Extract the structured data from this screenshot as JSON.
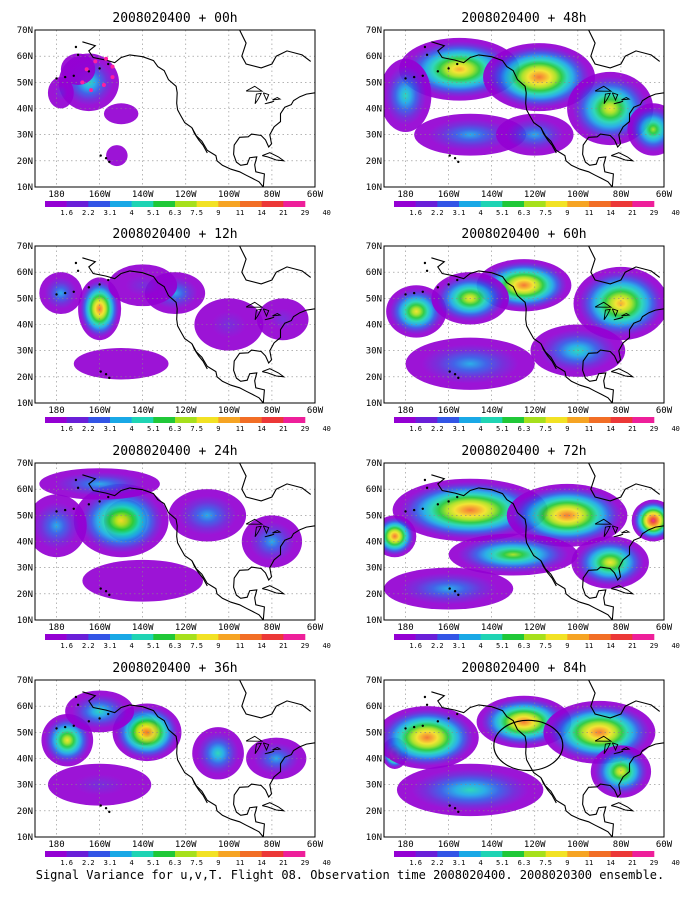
{
  "caption": "Signal Variance for u,v,T. Flight 08. Observation time 2008020400. 2008020300 ensemble.",
  "colors": [
    "#9400d3",
    "#6a1fd8",
    "#3355e6",
    "#19a8e6",
    "#1fd4b4",
    "#20c838",
    "#a6e01c",
    "#f2e224",
    "#f6a423",
    "#f26e26",
    "#ec3838",
    "#ee1f9a"
  ],
  "chart_data": [
    {
      "type": "heatmap",
      "title": "2008020400 + 00h",
      "lead": "00h",
      "x_ticks": [
        "180",
        "160W",
        "140W",
        "120W",
        "100W",
        "80W",
        "60W"
      ],
      "y_ticks": [
        "10N",
        "20N",
        "30N",
        "40N",
        "50N",
        "60N",
        "70N"
      ],
      "xlim": [
        -190,
        -60
      ],
      "ylim": [
        10,
        70
      ],
      "grid": true,
      "colorbar": [
        "1.6",
        "2.2",
        "3.1",
        "4",
        "5.1",
        "6.3",
        "7.5",
        "9",
        "11",
        "14",
        "21",
        "29",
        "40"
      ],
      "blobs": [
        [
          -165,
          50,
          14,
          11,
          5.5
        ],
        [
          -170,
          55,
          8,
          6,
          2
        ],
        [
          -150,
          38,
          8,
          4,
          1.6
        ],
        [
          -178,
          46,
          6,
          6,
          2.5
        ],
        [
          -152,
          22,
          5,
          4,
          2
        ]
      ],
      "markers": {
        "type": "dots",
        "points": [
          [
            -162,
            58
          ],
          [
            -157,
            59
          ],
          [
            -154,
            56
          ],
          [
            -154,
            52
          ],
          [
            -158,
            49
          ],
          [
            -164,
            47
          ],
          [
            -168,
            50
          ],
          [
            -166,
            55
          ]
        ]
      }
    },
    {
      "type": "heatmap",
      "title": "2008020400 + 48h",
      "lead": "48h",
      "x_ticks": [
        "180",
        "160W",
        "140W",
        "120W",
        "100W",
        "80W",
        "60W"
      ],
      "y_ticks": [
        "10N",
        "20N",
        "30N",
        "40N",
        "50N",
        "60N",
        "70N"
      ],
      "xlim": [
        -190,
        -60
      ],
      "ylim": [
        10,
        70
      ],
      "grid": true,
      "colorbar": [
        "1.6",
        "2.2",
        "3.1",
        "4",
        "5.1",
        "6.3",
        "7.5",
        "9",
        "11",
        "14",
        "21",
        "29",
        "40"
      ],
      "blobs": [
        [
          -155,
          55,
          28,
          12,
          12
        ],
        [
          -118,
          52,
          26,
          13,
          16
        ],
        [
          -85,
          40,
          20,
          14,
          10
        ],
        [
          -180,
          45,
          12,
          14,
          6
        ],
        [
          -65,
          32,
          12,
          10,
          8
        ],
        [
          -150,
          30,
          26,
          8,
          4
        ],
        [
          -120,
          30,
          18,
          8,
          4
        ]
      ]
    },
    {
      "type": "heatmap",
      "title": "2008020400 + 12h",
      "lead": "12h",
      "x_ticks": [
        "180",
        "160W",
        "140W",
        "120W",
        "100W",
        "80W",
        "60W"
      ],
      "y_ticks": [
        "10N",
        "20N",
        "30N",
        "40N",
        "50N",
        "60N",
        "70N"
      ],
      "xlim": [
        -190,
        -60
      ],
      "ylim": [
        10,
        70
      ],
      "grid": true,
      "colorbar": [
        "1.6",
        "2.2",
        "3.1",
        "4",
        "5.1",
        "6.3",
        "7.5",
        "9",
        "11",
        "14",
        "21",
        "29",
        "40"
      ],
      "blobs": [
        [
          -160,
          46,
          10,
          12,
          14
        ],
        [
          -178,
          52,
          10,
          8,
          5
        ],
        [
          -125,
          52,
          14,
          8,
          4
        ],
        [
          -100,
          40,
          16,
          10,
          3
        ],
        [
          -75,
          42,
          12,
          8,
          3
        ],
        [
          -140,
          55,
          16,
          8,
          3
        ],
        [
          -150,
          25,
          22,
          6,
          2
        ]
      ]
    },
    {
      "type": "heatmap",
      "title": "2008020400 + 60h",
      "lead": "60h",
      "x_ticks": [
        "180",
        "160W",
        "140W",
        "120W",
        "100W",
        "80W",
        "60W"
      ],
      "y_ticks": [
        "10N",
        "20N",
        "30N",
        "40N",
        "50N",
        "60N",
        "70N"
      ],
      "xlim": [
        -190,
        -60
      ],
      "ylim": [
        10,
        70
      ],
      "grid": true,
      "colorbar": [
        "1.6",
        "2.2",
        "3.1",
        "4",
        "5.1",
        "6.3",
        "7.5",
        "9",
        "11",
        "14",
        "21",
        "29",
        "40"
      ],
      "blobs": [
        [
          -125,
          55,
          22,
          10,
          16
        ],
        [
          -175,
          45,
          14,
          10,
          9
        ],
        [
          -150,
          50,
          18,
          10,
          9
        ],
        [
          -80,
          48,
          22,
          14,
          12
        ],
        [
          -150,
          25,
          30,
          10,
          5
        ],
        [
          -100,
          30,
          22,
          10,
          6
        ]
      ]
    },
    {
      "type": "heatmap",
      "title": "2008020400 + 24h",
      "lead": "24h",
      "x_ticks": [
        "180",
        "160W",
        "140W",
        "120W",
        "100W",
        "80W",
        "60W"
      ],
      "y_ticks": [
        "10N",
        "20N",
        "30N",
        "40N",
        "50N",
        "60N",
        "70N"
      ],
      "xlim": [
        -190,
        -60
      ],
      "ylim": [
        10,
        70
      ],
      "grid": true,
      "colorbar": [
        "1.6",
        "2.2",
        "3.1",
        "4",
        "5.1",
        "6.3",
        "7.5",
        "9",
        "11",
        "14",
        "21",
        "29",
        "40"
      ],
      "blobs": [
        [
          -148,
          48,
          10,
          8,
          34
        ],
        [
          -150,
          48,
          22,
          14,
          9
        ],
        [
          -180,
          46,
          14,
          12,
          5
        ],
        [
          -110,
          50,
          18,
          10,
          5
        ],
        [
          -80,
          40,
          14,
          10,
          4
        ],
        [
          -160,
          62,
          28,
          6,
          4
        ],
        [
          -140,
          25,
          28,
          8,
          2
        ]
      ]
    },
    {
      "type": "heatmap",
      "title": "2008020400 + 72h",
      "lead": "72h",
      "x_ticks": [
        "180",
        "160W",
        "140W",
        "120W",
        "100W",
        "80W",
        "60W"
      ],
      "y_ticks": [
        "10N",
        "20N",
        "30N",
        "40N",
        "50N",
        "60N",
        "70N"
      ],
      "xlim": [
        -190,
        -60
      ],
      "ylim": [
        10,
        70
      ],
      "grid": true,
      "colorbar": [
        "1.6",
        "2.2",
        "3.1",
        "4",
        "5.1",
        "6.3",
        "7.5",
        "9",
        "11",
        "14",
        "21",
        "29",
        "40"
      ],
      "blobs": [
        [
          -65,
          48,
          10,
          8,
          30
        ],
        [
          -150,
          52,
          36,
          12,
          16
        ],
        [
          -105,
          50,
          28,
          12,
          16
        ],
        [
          -185,
          42,
          10,
          8,
          18
        ],
        [
          -130,
          35,
          30,
          8,
          8
        ],
        [
          -85,
          32,
          18,
          10,
          9
        ],
        [
          -160,
          22,
          30,
          8,
          4
        ]
      ]
    },
    {
      "type": "heatmap",
      "title": "2008020400 + 36h",
      "lead": "36h",
      "x_ticks": [
        "180",
        "160W",
        "140W",
        "120W",
        "100W",
        "80W",
        "60W"
      ],
      "y_ticks": [
        "10N",
        "20N",
        "30N",
        "40N",
        "50N",
        "60N",
        "70N"
      ],
      "xlim": [
        -190,
        -60
      ],
      "ylim": [
        10,
        70
      ],
      "grid": true,
      "colorbar": [
        "1.6",
        "2.2",
        "3.1",
        "4",
        "5.1",
        "6.3",
        "7.5",
        "9",
        "11",
        "14",
        "21",
        "29",
        "40"
      ],
      "blobs": [
        [
          -140,
          51,
          7,
          6,
          30
        ],
        [
          -138,
          50,
          16,
          11,
          14
        ],
        [
          -175,
          47,
          12,
          10,
          9
        ],
        [
          -160,
          58,
          16,
          8,
          6
        ],
        [
          -105,
          42,
          12,
          10,
          6
        ],
        [
          -78,
          40,
          14,
          8,
          5
        ],
        [
          -160,
          30,
          24,
          8,
          3
        ]
      ]
    },
    {
      "type": "heatmap",
      "title": "2008020400 + 84h",
      "lead": "84h",
      "x_ticks": [
        "180",
        "160W",
        "140W",
        "120W",
        "100W",
        "80W",
        "60W"
      ],
      "y_ticks": [
        "10N",
        "20N",
        "30N",
        "40N",
        "50N",
        "60N",
        "70N"
      ],
      "xlim": [
        -190,
        -60
      ],
      "ylim": [
        10,
        70
      ],
      "grid": true,
      "colorbar": [
        "1.6",
        "2.2",
        "3.1",
        "4",
        "5.1",
        "6.3",
        "7.5",
        "9",
        "11",
        "14",
        "21",
        "29",
        "40"
      ],
      "blobs": [
        [
          -185,
          42,
          6,
          6,
          28
        ],
        [
          -170,
          48,
          24,
          12,
          16
        ],
        [
          -125,
          54,
          22,
          10,
          20
        ],
        [
          -90,
          50,
          26,
          12,
          16
        ],
        [
          -80,
          35,
          14,
          10,
          10
        ],
        [
          -150,
          28,
          34,
          10,
          6
        ]
      ],
      "markers": {
        "type": "circle",
        "center": [
          -123,
          45
        ],
        "radius_deg": 8
      }
    }
  ]
}
